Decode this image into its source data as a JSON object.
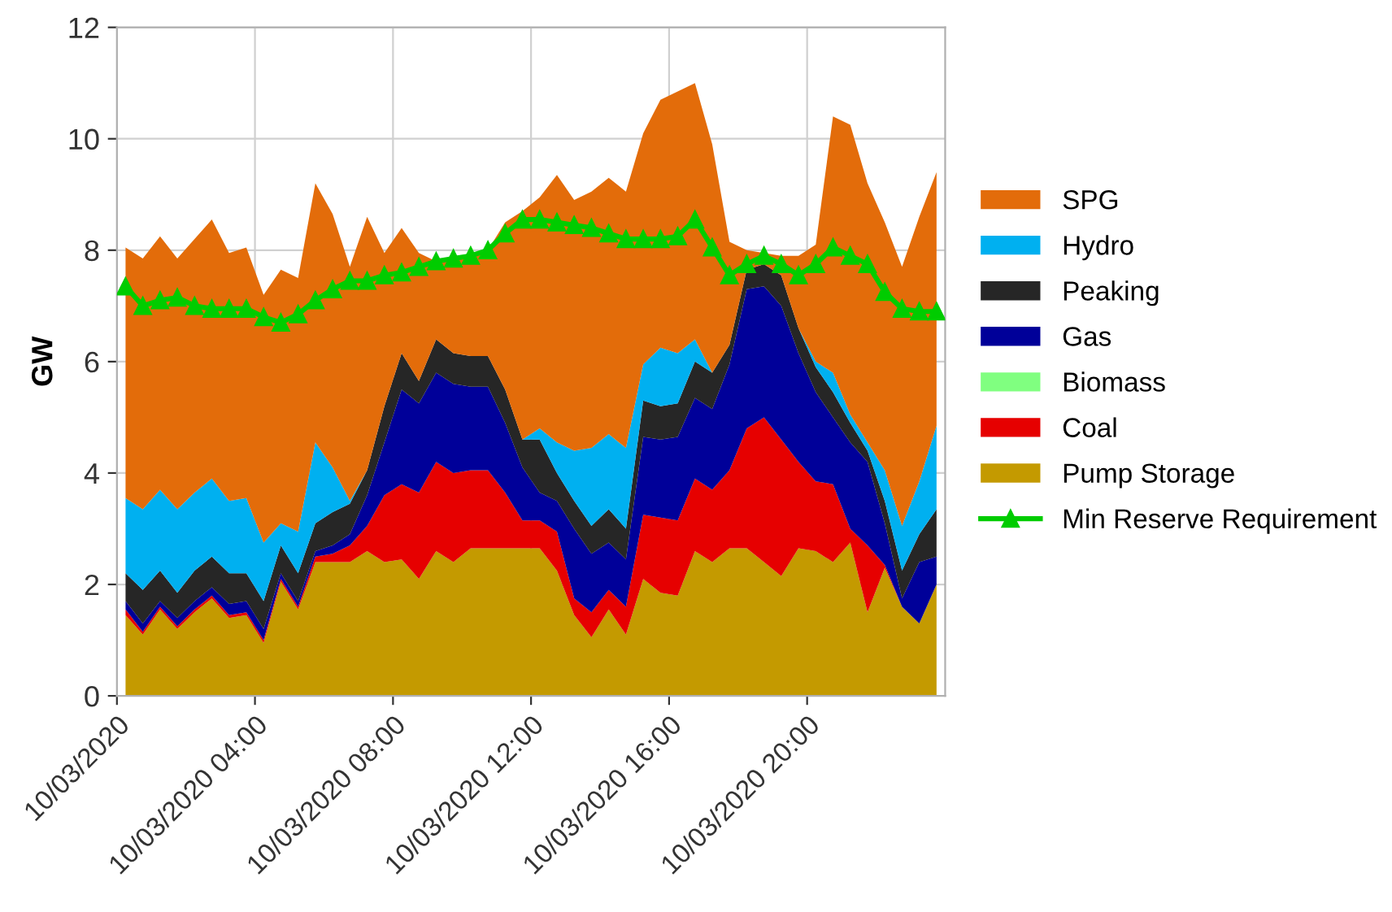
{
  "chart_data": {
    "type": "area",
    "stacked": true,
    "ylabel": "GW",
    "x": [
      "2020-03-10T00:15",
      "2020-03-10T00:45",
      "2020-03-10T01:15",
      "2020-03-10T01:45",
      "2020-03-10T02:15",
      "2020-03-10T02:45",
      "2020-03-10T03:15",
      "2020-03-10T03:45",
      "2020-03-10T04:15",
      "2020-03-10T04:45",
      "2020-03-10T05:15",
      "2020-03-10T05:45",
      "2020-03-10T06:15",
      "2020-03-10T06:45",
      "2020-03-10T07:15",
      "2020-03-10T07:45",
      "2020-03-10T08:15",
      "2020-03-10T08:45",
      "2020-03-10T09:15",
      "2020-03-10T09:45",
      "2020-03-10T10:15",
      "2020-03-10T10:45",
      "2020-03-10T11:15",
      "2020-03-10T11:45",
      "2020-03-10T12:15",
      "2020-03-10T12:45",
      "2020-03-10T13:15",
      "2020-03-10T13:45",
      "2020-03-10T14:15",
      "2020-03-10T14:45",
      "2020-03-10T15:15",
      "2020-03-10T15:45",
      "2020-03-10T16:15",
      "2020-03-10T16:45",
      "2020-03-10T17:15",
      "2020-03-10T17:45",
      "2020-03-10T18:15",
      "2020-03-10T18:45",
      "2020-03-10T19:15",
      "2020-03-10T19:45",
      "2020-03-10T20:15",
      "2020-03-10T20:45",
      "2020-03-10T21:15",
      "2020-03-10T21:45",
      "2020-03-10T22:15",
      "2020-03-10T22:45",
      "2020-03-10T23:15",
      "2020-03-10T23:45"
    ],
    "xlim": [
      "2020-03-10T00:00",
      "2020-03-11T00:00"
    ],
    "xticks": [
      {
        "value": "2020-03-10T00:00",
        "label": "10/03/2020"
      },
      {
        "value": "2020-03-10T04:00",
        "label": "10/03/2020 04:00"
      },
      {
        "value": "2020-03-10T08:00",
        "label": "10/03/2020 08:00"
      },
      {
        "value": "2020-03-10T12:00",
        "label": "10/03/2020 12:00"
      },
      {
        "value": "2020-03-10T16:00",
        "label": "10/03/2020 16:00"
      },
      {
        "value": "2020-03-10T20:00",
        "label": "10/03/2020 20:00"
      }
    ],
    "ylim": [
      0,
      12
    ],
    "yticks": [
      0,
      2,
      4,
      6,
      8,
      10,
      12
    ],
    "grid": true,
    "legend": "right",
    "series": [
      {
        "name": "Pump Storage",
        "color": "#c49a00",
        "values": [
          1.45,
          1.1,
          1.55,
          1.2,
          1.5,
          1.75,
          1.4,
          1.45,
          0.95,
          2.05,
          1.55,
          2.4,
          2.4,
          2.4,
          2.6,
          2.4,
          2.45,
          2.1,
          2.6,
          2.4,
          2.65,
          2.65,
          2.65,
          2.65,
          2.65,
          2.25,
          1.45,
          1.05,
          1.55,
          1.1,
          2.1,
          1.85,
          1.8,
          2.6,
          2.4,
          2.65,
          2.65,
          2.4,
          2.15,
          2.65,
          2.6,
          2.4,
          2.75,
          1.5,
          2.3,
          1.6,
          1.3,
          2.0
        ]
      },
      {
        "name": "Coal",
        "color": "#e60000",
        "values": [
          0.1,
          0.05,
          0.05,
          0.05,
          0.05,
          0.05,
          0.05,
          0.05,
          0.05,
          0.05,
          0.05,
          0.1,
          0.15,
          0.3,
          0.45,
          1.2,
          1.35,
          1.55,
          1.6,
          1.6,
          1.4,
          1.4,
          1.0,
          0.5,
          0.5,
          0.7,
          0.3,
          0.45,
          0.35,
          0.5,
          1.15,
          1.35,
          1.35,
          1.3,
          1.3,
          1.4,
          2.15,
          2.6,
          2.45,
          1.55,
          1.25,
          1.4,
          0.25,
          1.2,
          0.05,
          0,
          0,
          0
        ]
      },
      {
        "name": "Biomass",
        "color": "#80ff80",
        "values": [
          null,
          null,
          null,
          null,
          null,
          null,
          null,
          null,
          null,
          null,
          null,
          null,
          null,
          null,
          null,
          null,
          null,
          null,
          null,
          null,
          null,
          null,
          null,
          null,
          null,
          null,
          null,
          null,
          null,
          null,
          null,
          null,
          null,
          null,
          null,
          null,
          null,
          null,
          null,
          null,
          null,
          null,
          null,
          null,
          null,
          null,
          null,
          null
        ]
      },
      {
        "name": "Gas",
        "color": "#000099",
        "values": [
          0.15,
          0.15,
          0.1,
          0.15,
          0.15,
          0.15,
          0.2,
          0.2,
          0.2,
          0.1,
          0.1,
          0.1,
          0.15,
          0.2,
          0.55,
          0.95,
          1.7,
          1.6,
          1.6,
          1.6,
          1.5,
          1.5,
          1.25,
          0.95,
          0.5,
          0.55,
          1.25,
          1.05,
          0.85,
          0.85,
          1.4,
          1.4,
          1.5,
          1.45,
          1.45,
          1.9,
          2.5,
          2.35,
          2.4,
          1.95,
          1.6,
          1.2,
          1.55,
          1.5,
          0.75,
          0.15,
          1.1,
          0.5
        ]
      },
      {
        "name": "Peaking",
        "color": "#262626",
        "values": [
          0.5,
          0.6,
          0.55,
          0.45,
          0.55,
          0.55,
          0.55,
          0.5,
          0.5,
          0.5,
          0.5,
          0.5,
          0.6,
          0.55,
          0.45,
          0.65,
          0.65,
          0.4,
          0.6,
          0.55,
          0.55,
          0.55,
          0.6,
          0.5,
          0.95,
          0.5,
          0.5,
          0.5,
          0.6,
          0.55,
          0.65,
          0.6,
          0.6,
          0.65,
          0.65,
          0.35,
          0.35,
          0.4,
          0.55,
          0.45,
          0.45,
          0.45,
          0.35,
          0.2,
          0.4,
          0.5,
          0.5,
          0.85
        ]
      },
      {
        "name": "Hydro",
        "color": "#00b0f0",
        "values": [
          1.35,
          1.45,
          1.45,
          1.5,
          1.4,
          1.4,
          1.3,
          1.35,
          1.05,
          0.4,
          0.75,
          1.45,
          0.8,
          0.05,
          0,
          0,
          0,
          0,
          0,
          0,
          0,
          0,
          0,
          0,
          0.2,
          0.55,
          0.9,
          1.4,
          1.35,
          1.45,
          0.65,
          1.05,
          0.9,
          0.4,
          0,
          0,
          0,
          0,
          0,
          0,
          0.1,
          0.35,
          0.15,
          0.15,
          0.55,
          0.8,
          0.95,
          1.5
        ]
      },
      {
        "name": "SPG",
        "color": "#e36c0a",
        "values": [
          4.5,
          4.5,
          4.55,
          4.5,
          4.55,
          4.65,
          4.45,
          4.5,
          4.45,
          4.55,
          4.55,
          4.65,
          4.55,
          4.2,
          4.55,
          2.75,
          2.25,
          2.3,
          1.4,
          1.65,
          1.85,
          1.9,
          3.0,
          4.1,
          4.15,
          4.8,
          4.5,
          4.6,
          4.6,
          4.6,
          4.15,
          4.45,
          4.7,
          4.6,
          4.1,
          1.85,
          0.35,
          0.2,
          0.35,
          1.3,
          2.1,
          4.6,
          5.2,
          4.65,
          4.45,
          4.65,
          4.75,
          4.55
        ]
      },
      {
        "name": "Min Reserve Requirement",
        "type": "line",
        "color": "#00cc00",
        "marker": "triangle",
        "values": [
          7.35,
          7.0,
          7.1,
          7.15,
          7.0,
          6.95,
          6.95,
          6.95,
          6.8,
          6.7,
          6.85,
          7.1,
          7.3,
          7.45,
          7.45,
          7.55,
          7.6,
          7.7,
          7.8,
          7.85,
          7.9,
          8.0,
          8.3,
          8.55,
          8.55,
          8.5,
          8.45,
          8.4,
          8.3,
          8.2,
          8.2,
          8.2,
          8.25,
          8.55,
          8.05,
          7.55,
          7.75,
          7.9,
          7.75,
          7.55,
          7.75,
          8.05,
          7.9,
          7.75,
          7.25,
          6.95,
          6.9,
          6.9
        ]
      }
    ]
  }
}
